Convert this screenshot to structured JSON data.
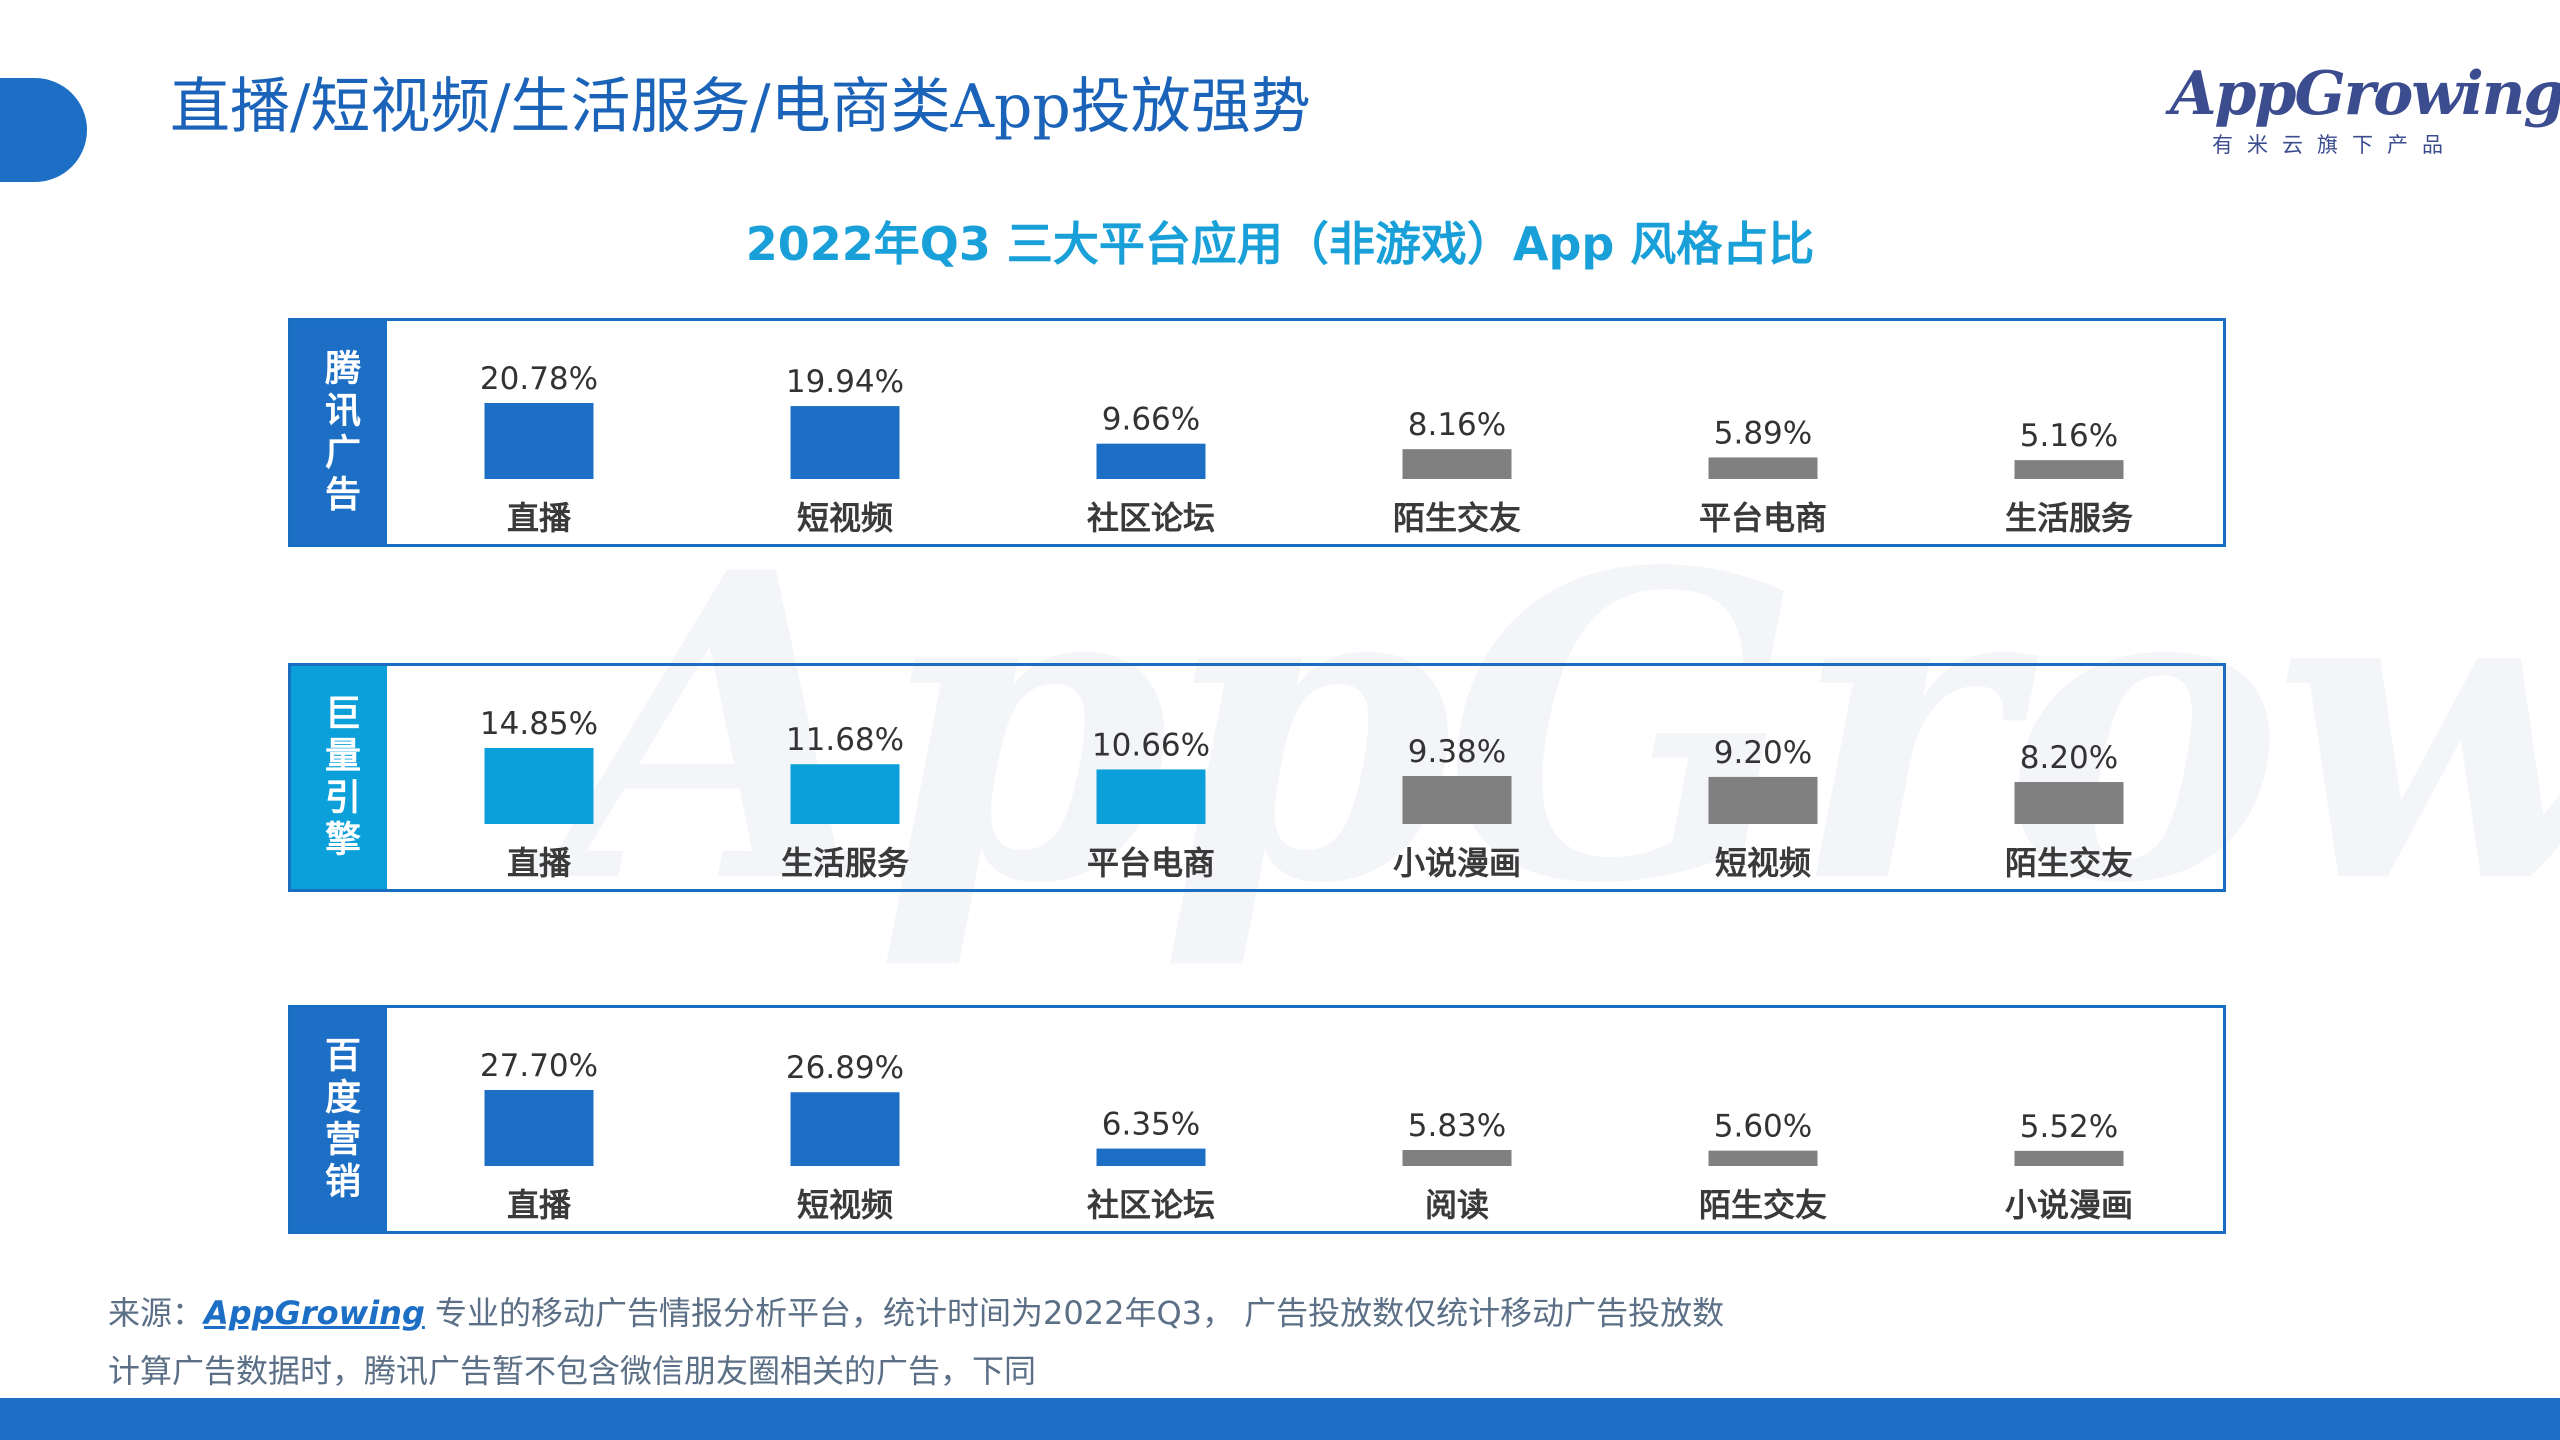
{
  "page": {
    "title": "直播/短视频/生活服务/电商类App投放强势",
    "logo_word": "AppGrowing",
    "logo_sub": "有米云旗下产品",
    "watermark": "AppGrowing"
  },
  "colors": {
    "accent_blue": "#1d6fc6",
    "cyan": "#0ba0da",
    "gray": "#808080",
    "title_cyan": "#1aa0d8"
  },
  "chart_data": {
    "type": "bar",
    "title": "2022年Q3 三大平台应用（非游戏）App 风格占比",
    "unit": "%",
    "panels": [
      {
        "platform": "腾讯广告",
        "categories": [
          "直播",
          "短视频",
          "社区论坛",
          "陌生交友",
          "平台电商",
          "生活服务"
        ],
        "values": [
          20.78,
          19.94,
          9.66,
          8.16,
          5.89,
          5.16
        ],
        "value_labels": [
          "20.78%",
          "19.94%",
          "9.66%",
          "8.16%",
          "5.89%",
          "5.16%"
        ],
        "highlight_count": 3,
        "highlight_color": "#1d6fc6"
      },
      {
        "platform": "巨量引擎",
        "categories": [
          "直播",
          "生活服务",
          "平台电商",
          "小说漫画",
          "短视频",
          "陌生交友"
        ],
        "values": [
          14.85,
          11.68,
          10.66,
          9.38,
          9.2,
          8.2
        ],
        "value_labels": [
          "14.85%",
          "11.68%",
          "10.66%",
          "9.38%",
          "9.20%",
          "8.20%"
        ],
        "highlight_count": 3,
        "highlight_color": "#0ba0da"
      },
      {
        "platform": "百度营销",
        "categories": [
          "直播",
          "短视频",
          "社区论坛",
          "阅读",
          "陌生交友",
          "小说漫画"
        ],
        "values": [
          27.7,
          26.89,
          6.35,
          5.83,
          5.6,
          5.52
        ],
        "value_labels": [
          "27.70%",
          "26.89%",
          "6.35%",
          "5.83%",
          "5.60%",
          "5.52%"
        ],
        "highlight_count": 3,
        "highlight_color": "#1d6fc6"
      }
    ]
  },
  "footer": {
    "source_prefix": "来源：",
    "source_brand": "AppGrowing",
    "source_rest": " 专业的移动广告情报分析平台，统计时间为2022年Q3， 广告投放数仅统计移动广告投放数",
    "note": "计算广告数据时，腾讯广告暂不包含微信朋友圈相关的广告，下同"
  }
}
